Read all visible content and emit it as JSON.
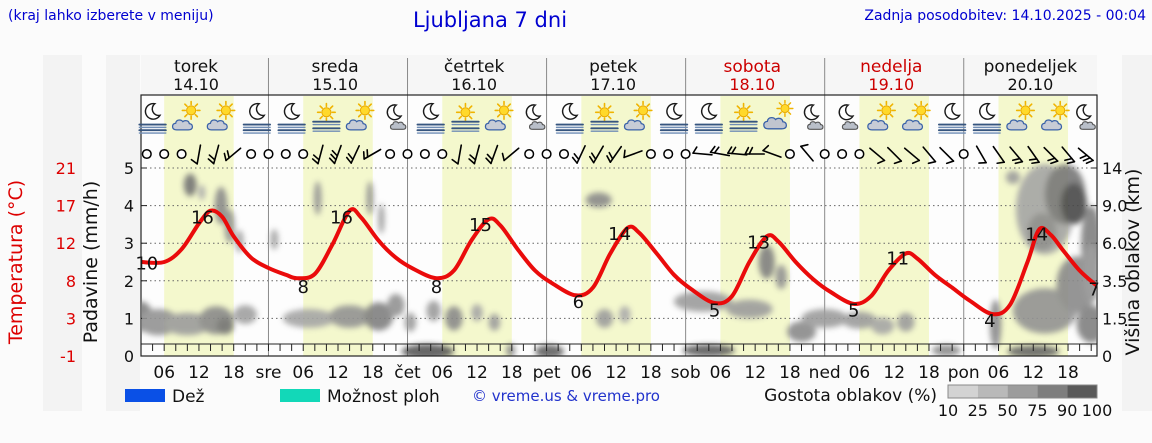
{
  "header": {
    "hint": "(kraj lahko izberete v meniju)",
    "title": "Ljubljana 7 dni",
    "updated": "Zadnja posodobitev: 14.10.2025 - 00:04",
    "accent_color": "#0000d0"
  },
  "days": [
    {
      "name": "torek",
      "date": "14.10",
      "weekend": false
    },
    {
      "name": "sreda",
      "date": "15.10",
      "weekend": false
    },
    {
      "name": "četrtek",
      "date": "16.10",
      "weekend": false
    },
    {
      "name": "petek",
      "date": "17.10",
      "weekend": false
    },
    {
      "name": "sobota",
      "date": "18.10",
      "weekend": true
    },
    {
      "name": "nedelja",
      "date": "19.10",
      "weekend": true
    },
    {
      "name": "ponedeljek",
      "date": "20.10",
      "weekend": false
    }
  ],
  "axes": {
    "left_temp": {
      "label": "Temperatura (°C)",
      "color": "#dd0000",
      "ticks": [
        21,
        17,
        12,
        8,
        3,
        -1
      ]
    },
    "left_precip": {
      "label": "Padavine (mm/h)",
      "ticks": [
        5,
        4,
        3,
        2,
        1,
        0
      ]
    },
    "right_cloud": {
      "label": "Višina oblakov (km)",
      "ticks": [
        "14",
        "9.0",
        "6.0",
        "3.5",
        "1.5",
        "0"
      ]
    },
    "x_hour_labels": [
      "06",
      "12",
      "18"
    ],
    "x_day_marks": [
      "sre",
      "čet",
      "pet",
      "sob",
      "ned",
      "pon"
    ]
  },
  "legend": {
    "rain_label": "Dež",
    "rain_color": "#0a50e6",
    "showers_label": "Možnost ploh",
    "showers_color": "#12d8b8",
    "credit": "© vreme.us & vreme.pro",
    "credit_color": "#2233cc",
    "cloud_label": "Gostota oblakov (%)",
    "cloud_scale_values": [
      "10",
      "25",
      "50",
      "75",
      "90",
      "100"
    ],
    "cloud_scale_colors": [
      "#d3d3d3",
      "#b9b9b9",
      "#9c9c9c",
      "#7e7e7e",
      "#595959"
    ]
  },
  "chart_data": {
    "type": "line",
    "title": "Ljubljana 7 dni",
    "x_domain_hours": [
      2,
      167
    ],
    "day_length_hours": 24,
    "daylight_band_hours": [
      6,
      18
    ],
    "daylight_color": "#f4f8cd",
    "ylim_units": [
      0,
      5
    ],
    "unit_to_km": {
      "0": 0,
      "1": 1.5,
      "2": 3.5,
      "3": 6.0,
      "4": 9.0,
      "5": 14
    },
    "unit_to_temp": {
      "0": -1,
      "1": 3,
      "2": 8,
      "3": 12,
      "4": 17,
      "5": 21
    },
    "temperature": {
      "name": "Temperatura",
      "color": "#ea0b0b",
      "points": [
        [
          2,
          10
        ],
        [
          6,
          10
        ],
        [
          9,
          11.5
        ],
        [
          12,
          14.5
        ],
        [
          14,
          16
        ],
        [
          16,
          15.3
        ],
        [
          18,
          13
        ],
        [
          21,
          10.5
        ],
        [
          24,
          9.3
        ],
        [
          27,
          8.5
        ],
        [
          29,
          8.1
        ],
        [
          32,
          8.6
        ],
        [
          35,
          12
        ],
        [
          38,
          16
        ],
        [
          40,
          15.2
        ],
        [
          43,
          12.5
        ],
        [
          46,
          10.5
        ],
        [
          49,
          9.2
        ],
        [
          53,
          8.1
        ],
        [
          56,
          9
        ],
        [
          59,
          12.5
        ],
        [
          62,
          15
        ],
        [
          64,
          14.3
        ],
        [
          67,
          11.5
        ],
        [
          70,
          9
        ],
        [
          73,
          7.5
        ],
        [
          77,
          6.1
        ],
        [
          80,
          7
        ],
        [
          83,
          11
        ],
        [
          86,
          14
        ],
        [
          88,
          13.4
        ],
        [
          91,
          11
        ],
        [
          94,
          8.5
        ],
        [
          97,
          6.8
        ],
        [
          101,
          5.2
        ],
        [
          104,
          6
        ],
        [
          107,
          10
        ],
        [
          110,
          13
        ],
        [
          112,
          12.4
        ],
        [
          115,
          10
        ],
        [
          118,
          8
        ],
        [
          121,
          6.5
        ],
        [
          125,
          5.1
        ],
        [
          128,
          6
        ],
        [
          131,
          9
        ],
        [
          134,
          11
        ],
        [
          136,
          10.4
        ],
        [
          139,
          8.5
        ],
        [
          142,
          7
        ],
        [
          145,
          5.5
        ],
        [
          149,
          3.9
        ],
        [
          152,
          5
        ],
        [
          155,
          10
        ],
        [
          157,
          13.8
        ],
        [
          159,
          13.2
        ],
        [
          161,
          11.5
        ],
        [
          164,
          9
        ],
        [
          167,
          7.2
        ]
      ],
      "point_labels": [
        [
          "10",
          3,
          9.1
        ],
        [
          "16",
          12.6,
          14.5
        ],
        [
          "8",
          30,
          6.4
        ],
        [
          "16",
          36.6,
          14.5
        ],
        [
          "8",
          53,
          6.4
        ],
        [
          "15",
          60.6,
          13.6
        ],
        [
          "6",
          77.5,
          4.6
        ],
        [
          "14",
          84.6,
          12.6
        ],
        [
          "5",
          101,
          3.6
        ],
        [
          "13",
          108.6,
          11.6
        ],
        [
          "5",
          125,
          3.6
        ],
        [
          "11",
          132.6,
          9.7
        ],
        [
          "4",
          148.5,
          2.4
        ],
        [
          "14",
          156.6,
          12.5
        ],
        [
          "7",
          166.5,
          6.1
        ]
      ]
    },
    "rain_bars": [],
    "clouds_blobs_h_u_w_t_density": [
      [
        2,
        1.05,
        4,
        0.8,
        0.55
      ],
      [
        5,
        0.9,
        7,
        0.7,
        0.45
      ],
      [
        10,
        0.85,
        8,
        0.6,
        0.4
      ],
      [
        15,
        0.95,
        6,
        0.75,
        0.5
      ],
      [
        16.5,
        0.8,
        3,
        0.45,
        0.62
      ],
      [
        20,
        1.1,
        4,
        0.5,
        0.38
      ],
      [
        10.5,
        4.55,
        2.2,
        0.6,
        0.62
      ],
      [
        12.5,
        4.35,
        1.2,
        0.4,
        0.32
      ],
      [
        15.8,
        4.0,
        2.2,
        1.0,
        0.5
      ],
      [
        17.3,
        3.45,
        1.8,
        0.9,
        0.45
      ],
      [
        19,
        3.05,
        1.5,
        0.6,
        0.35
      ],
      [
        25,
        3.1,
        1.4,
        0.55,
        0.35
      ],
      [
        31,
        1.0,
        9,
        0.5,
        0.35
      ],
      [
        38,
        1.05,
        7,
        0.6,
        0.45
      ],
      [
        43,
        1.05,
        5,
        0.75,
        0.55
      ],
      [
        46,
        1.35,
        3,
        0.6,
        0.45
      ],
      [
        48.5,
        0.9,
        2,
        0.5,
        0.4
      ],
      [
        32.5,
        4.2,
        1.3,
        0.9,
        0.45
      ],
      [
        41.5,
        4.2,
        1.2,
        0.9,
        0.45
      ],
      [
        43.5,
        3.65,
        1.1,
        0.8,
        0.4
      ],
      [
        51.5,
        0.12,
        9,
        0.4,
        0.78
      ],
      [
        52.5,
        1.2,
        2.5,
        0.55,
        0.4
      ],
      [
        56,
        1.0,
        3,
        0.65,
        0.5
      ],
      [
        60,
        1.15,
        2,
        0.45,
        0.35
      ],
      [
        63,
        0.9,
        2,
        0.45,
        0.4
      ],
      [
        65.8,
        0.15,
        1.6,
        0.35,
        0.5
      ],
      [
        72.5,
        0.12,
        5,
        0.35,
        0.72
      ],
      [
        81,
        4.15,
        4.5,
        0.4,
        0.5
      ],
      [
        82,
        1.0,
        3,
        0.5,
        0.4
      ],
      [
        85.5,
        1.1,
        2,
        0.45,
        0.32
      ],
      [
        100,
        0.15,
        9,
        0.32,
        0.75
      ],
      [
        99,
        1.45,
        10,
        0.55,
        0.4
      ],
      [
        107,
        1.25,
        8,
        0.5,
        0.4
      ],
      [
        110,
        2.5,
        2.8,
        0.9,
        0.55
      ],
      [
        112.5,
        2.1,
        2,
        0.65,
        0.45
      ],
      [
        116,
        0.65,
        5,
        0.55,
        0.5
      ],
      [
        120,
        1.0,
        8,
        0.5,
        0.4
      ],
      [
        126,
        0.95,
        6,
        0.45,
        0.4
      ],
      [
        130,
        0.8,
        4,
        0.45,
        0.35
      ],
      [
        134,
        0.9,
        3,
        0.5,
        0.4
      ],
      [
        141,
        0.15,
        5,
        0.3,
        0.5
      ],
      [
        149.5,
        0.85,
        2,
        1.3,
        0.5
      ],
      [
        152.5,
        4.75,
        2.5,
        0.35,
        0.4
      ],
      [
        158,
        3.9,
        10,
        2.4,
        0.35
      ],
      [
        161.5,
        4.3,
        7,
        1.6,
        0.6
      ],
      [
        163,
        4.05,
        4.5,
        1.1,
        0.85
      ],
      [
        157.5,
        3.3,
        5,
        1.0,
        0.5
      ],
      [
        166,
        3.0,
        3.5,
        2.0,
        0.55
      ],
      [
        158,
        1.2,
        11,
        1.2,
        0.45
      ],
      [
        163.5,
        1.9,
        7,
        1.5,
        0.5
      ],
      [
        166,
        0.85,
        5,
        1.0,
        0.55
      ],
      [
        156,
        0.12,
        9,
        0.32,
        0.7
      ],
      [
        166,
        2.2,
        3,
        1.6,
        0.45
      ]
    ],
    "weather_icons": [
      [
        4,
        "moon-fog"
      ],
      [
        10,
        "sun-cloud"
      ],
      [
        16,
        "sun-cloud"
      ],
      [
        22,
        "moon-fog"
      ],
      [
        28,
        "moon-fog"
      ],
      [
        34,
        "sun-fog"
      ],
      [
        40,
        "sun-cloud"
      ],
      [
        46,
        "moon-cloud"
      ],
      [
        52,
        "moon-fog"
      ],
      [
        58,
        "sun-fog"
      ],
      [
        64,
        "sun-cloud"
      ],
      [
        70,
        "moon-cloud"
      ],
      [
        76,
        "moon-fog"
      ],
      [
        82,
        "sun-fog"
      ],
      [
        88,
        "sun-cloud"
      ],
      [
        94,
        "moon-fog"
      ],
      [
        100,
        "moon-fog"
      ],
      [
        106,
        "sun-fog"
      ],
      [
        112,
        "cloud-sun"
      ],
      [
        118,
        "moon-cloud"
      ],
      [
        124,
        "moon-cloud"
      ],
      [
        130,
        "sun-cloud"
      ],
      [
        136,
        "sun-cloud"
      ],
      [
        142,
        "moon-fog"
      ],
      [
        148,
        "moon-fog"
      ],
      [
        154,
        "sun-cloud"
      ],
      [
        160,
        "sun-cloud"
      ],
      [
        165,
        "moon-cloud"
      ]
    ],
    "wind_symbols": [
      [
        3,
        "c"
      ],
      [
        6,
        "c"
      ],
      [
        9,
        "c"
      ],
      [
        12,
        "b",
        100,
        1
      ],
      [
        15,
        "b",
        105,
        2
      ],
      [
        18,
        "b",
        140,
        2
      ],
      [
        21,
        "c"
      ],
      [
        24,
        "c"
      ],
      [
        27,
        "c"
      ],
      [
        30,
        "c"
      ],
      [
        33,
        "b",
        105,
        2
      ],
      [
        36,
        "b",
        110,
        3
      ],
      [
        39,
        "b",
        115,
        2
      ],
      [
        42,
        "b",
        150,
        2
      ],
      [
        45,
        "c"
      ],
      [
        48,
        "c"
      ],
      [
        51,
        "c"
      ],
      [
        54,
        "c"
      ],
      [
        57,
        "b",
        100,
        1
      ],
      [
        60,
        "b",
        105,
        2
      ],
      [
        63,
        "b",
        110,
        2
      ],
      [
        66,
        "b",
        140,
        1
      ],
      [
        69,
        "c"
      ],
      [
        72,
        "c"
      ],
      [
        75,
        "c"
      ],
      [
        78,
        "b",
        115,
        2
      ],
      [
        81,
        "b",
        120,
        2
      ],
      [
        84,
        "b",
        125,
        2
      ],
      [
        87,
        "b",
        160,
        1
      ],
      [
        90,
        "c"
      ],
      [
        93,
        "c"
      ],
      [
        96,
        "c"
      ],
      [
        99,
        "b",
        185,
        1
      ],
      [
        102,
        "b",
        190,
        2
      ],
      [
        105,
        "b",
        185,
        2
      ],
      [
        108,
        "b",
        180,
        2
      ],
      [
        111,
        "b",
        200,
        1
      ],
      [
        114,
        "c"
      ],
      [
        117,
        "b",
        230,
        1
      ],
      [
        120,
        "c"
      ],
      [
        123,
        "c"
      ],
      [
        126,
        "c"
      ],
      [
        129,
        "b",
        40,
        1
      ],
      [
        132,
        "b",
        45,
        1
      ],
      [
        135,
        "b",
        40,
        1
      ],
      [
        138,
        "b",
        50,
        1
      ],
      [
        141,
        "b",
        45,
        1
      ],
      [
        144,
        "c"
      ],
      [
        147,
        "b",
        60,
        1
      ],
      [
        150,
        "b",
        55,
        1
      ],
      [
        153,
        "b",
        50,
        2
      ],
      [
        156,
        "b",
        55,
        2
      ],
      [
        159,
        "b",
        45,
        2
      ],
      [
        162,
        "b",
        50,
        2
      ],
      [
        165,
        "b",
        40,
        3
      ]
    ]
  }
}
